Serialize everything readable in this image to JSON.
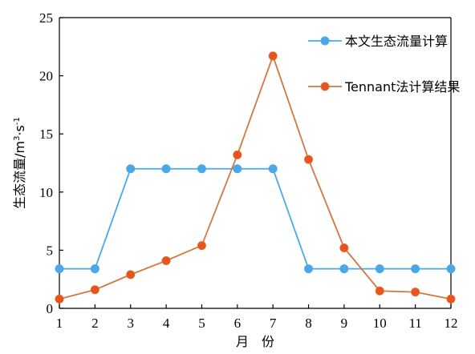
{
  "chart_data": {
    "type": "line",
    "categories": [
      "1",
      "2",
      "3",
      "4",
      "5",
      "6",
      "7",
      "8",
      "9",
      "10",
      "11",
      "12"
    ],
    "x": [
      1,
      2,
      3,
      4,
      5,
      6,
      7,
      8,
      9,
      10,
      11,
      12
    ],
    "xlabel": "月　份",
    "ylabel_main": "生态流量/m",
    "ylabel_sup1": "3",
    "ylabel_mid": "·s",
    "ylabel_sup2": "-1",
    "ylim": [
      0,
      25
    ],
    "xlim": [
      1,
      12
    ],
    "y_ticks": [
      0,
      5,
      10,
      15,
      20,
      25
    ],
    "grid": false,
    "legend_position": "top-right",
    "series": [
      {
        "name": "本文生态流量计算",
        "color": "#4aa8e8",
        "values": [
          3.4,
          3.4,
          12.0,
          12.0,
          12.0,
          12.0,
          12.0,
          3.4,
          3.4,
          3.4,
          3.4,
          3.4
        ]
      },
      {
        "name": "Tennant法计算结果",
        "color": "#e8541b",
        "line_color": "#d4773f",
        "values": [
          0.8,
          1.6,
          2.9,
          4.1,
          5.4,
          13.2,
          21.7,
          12.8,
          5.2,
          1.5,
          1.4,
          0.8
        ]
      }
    ]
  }
}
